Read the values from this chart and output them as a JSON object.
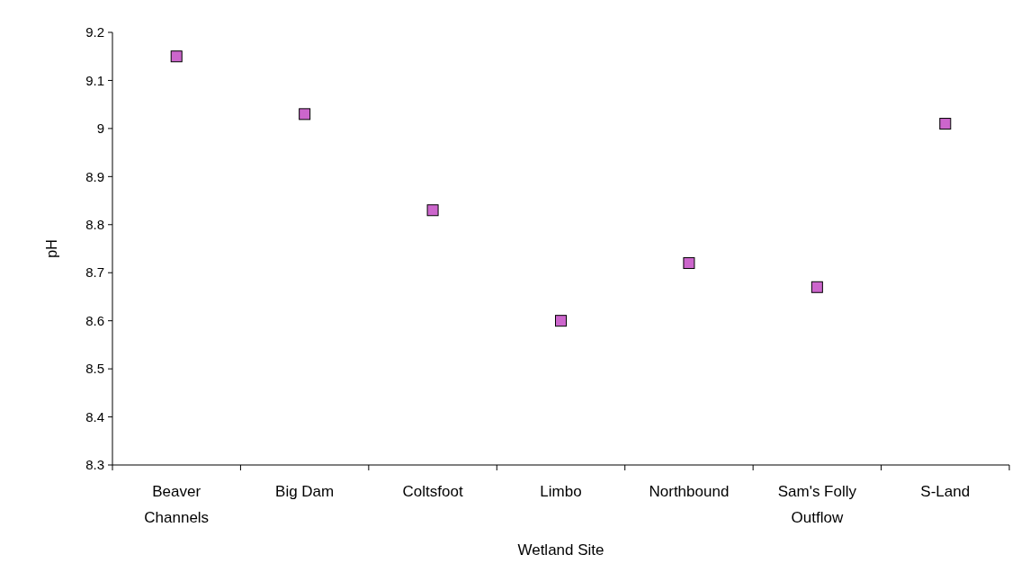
{
  "chart_data": {
    "type": "scatter",
    "xlabel": "Wetland Site",
    "ylabel": "pH",
    "categories": [
      "Beaver Channels",
      "Big Dam",
      "Coltsfoot",
      "Limbo",
      "Northbound",
      "Sam's Folly Outflow",
      "S-Land"
    ],
    "series": [
      {
        "color": "#cc66cc",
        "values": [
          9.15,
          9.03,
          8.83,
          8.6,
          8.72,
          8.67,
          9.01
        ]
      }
    ],
    "ylim": [
      8.3,
      9.2
    ],
    "yticks": [
      8.3,
      8.4,
      8.5,
      8.6,
      8.7,
      8.8,
      8.9,
      9,
      9.1,
      9.2
    ],
    "marker": "square"
  }
}
